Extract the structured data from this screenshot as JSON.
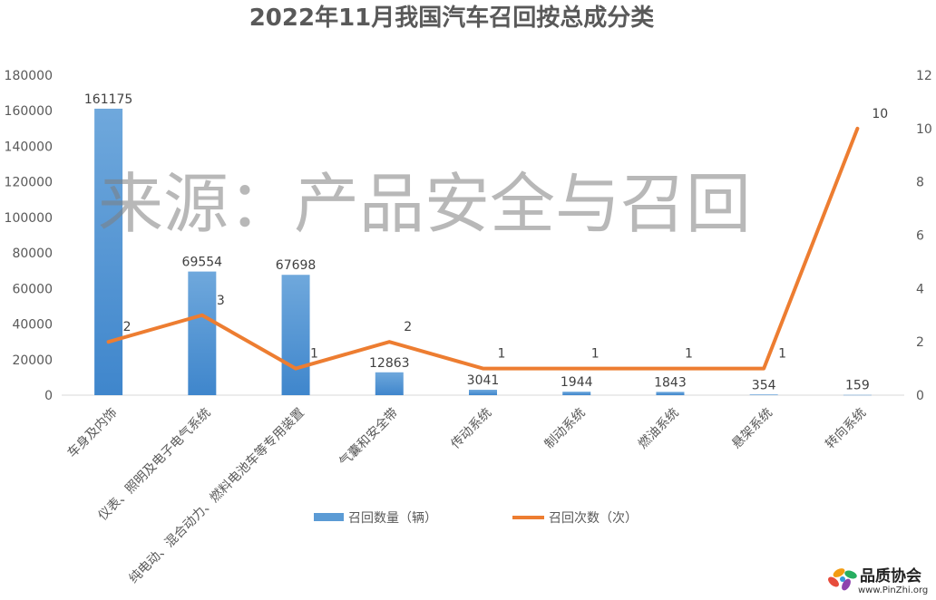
{
  "chart_data": {
    "type": "bar",
    "title": "2022年11月我国汽车召回按总成分类",
    "categories": [
      "车身及内饰",
      "仪表、照明及电子电气系统",
      "纯电动、混合动力、燃料电池车等专用装置",
      "气囊和安全带",
      "传动系统",
      "制动系统",
      "燃油系统",
      "悬架系统",
      "转向系统"
    ],
    "series": [
      {
        "name": "召回数量（辆）",
        "type": "bar",
        "axis": "left",
        "color": "#5b9bd5",
        "values": [
          161175,
          69554,
          67698,
          12863,
          3041,
          1944,
          1843,
          354,
          159
        ]
      },
      {
        "name": "召回次数（次）",
        "type": "line",
        "axis": "right",
        "color": "#ed7d31",
        "values": [
          2,
          3,
          1,
          2,
          1,
          1,
          1,
          1,
          10
        ]
      }
    ],
    "ylim": [
      0,
      180000
    ],
    "y_ticks": [
      "0",
      "20000",
      "40000",
      "60000",
      "80000",
      "100000",
      "120000",
      "140000",
      "160000",
      "180000"
    ],
    "y2lim": [
      0,
      12
    ],
    "y2_ticks": [
      "0",
      "2",
      "4",
      "6",
      "8",
      "10",
      "12"
    ],
    "legend_position": "bottom",
    "grid": false
  },
  "watermark": "来源：产品安全与召回",
  "logo": {
    "name": "品质协会",
    "url": "www.PinZhi.org"
  }
}
